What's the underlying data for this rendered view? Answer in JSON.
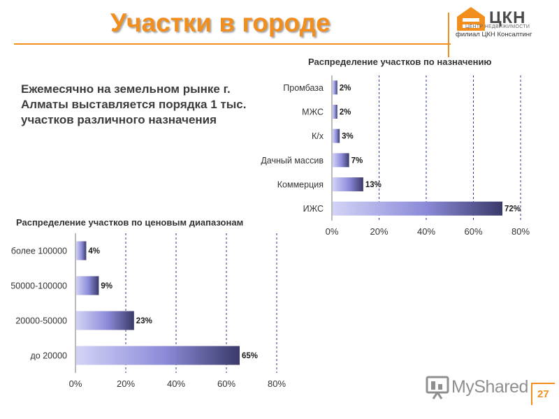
{
  "slide": {
    "title": "Участки в городе",
    "page_number": "27",
    "intro_text": "Ежемесячно на земельном рынке г. Алматы выставляется порядка 1 тыс. участков различного назначения"
  },
  "logo": {
    "brand": "ЦКН",
    "subtitle": "ЦЕНТР НЕДВИЖИМОСТИ",
    "branch": "филиал ЦКН Консалтинг",
    "icon": "house-logo-icon"
  },
  "watermark": {
    "text": "MyShared",
    "icon": "presentation-board-icon"
  },
  "colors": {
    "accent": "#f28e1e",
    "bar_light": "#d3d3f7",
    "bar_dark": "#3a3a6a",
    "grid": "#2a3a8a"
  },
  "chart_data": [
    {
      "type": "bar",
      "orientation": "horizontal",
      "title": "Распределение участков по назначению",
      "categories": [
        "Промбаза",
        "МЖС",
        "К/х",
        "Дачный массив",
        "Коммерция",
        "ИЖС"
      ],
      "values": [
        2,
        2,
        3,
        7,
        13,
        72
      ],
      "value_labels": [
        "2%",
        "2%",
        "3%",
        "7%",
        "13%",
        "72%"
      ],
      "xlim": [
        0,
        80
      ],
      "ticks": [
        0,
        20,
        40,
        60,
        80
      ],
      "tick_labels": [
        "0%",
        "20%",
        "40%",
        "60%",
        "80%"
      ],
      "grid": "vertical dashed"
    },
    {
      "type": "bar",
      "orientation": "horizontal",
      "title": "Распределение участков по ценовым диапазонам",
      "categories": [
        "более 100000",
        "50000-100000",
        "20000-50000",
        "до 20000"
      ],
      "values": [
        4,
        9,
        23,
        65
      ],
      "value_labels": [
        "4%",
        "9%",
        "23%",
        "65%"
      ],
      "xlim": [
        0,
        80
      ],
      "ticks": [
        0,
        20,
        40,
        60,
        80
      ],
      "tick_labels": [
        "0%",
        "20%",
        "40%",
        "60%",
        "80%"
      ],
      "grid": "vertical dashed"
    }
  ]
}
